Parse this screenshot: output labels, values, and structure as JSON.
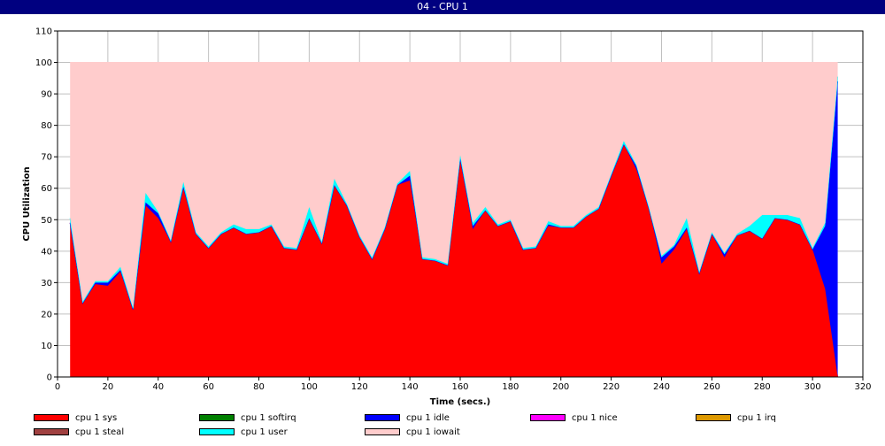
{
  "window": {
    "title": "04 - CPU 1"
  },
  "chart_data": {
    "type": "area",
    "stacked": true,
    "xlabel": "Time (secs.)",
    "ylabel": "CPU Utilization",
    "xlim": [
      0,
      320
    ],
    "ylim": [
      0,
      110
    ],
    "xticks": [
      0,
      20,
      40,
      60,
      80,
      100,
      120,
      140,
      160,
      180,
      200,
      220,
      240,
      260,
      280,
      300,
      320
    ],
    "yticks": [
      0,
      10,
      20,
      30,
      40,
      50,
      60,
      70,
      80,
      90,
      100,
      110
    ],
    "grid": true,
    "legend_position": "bottom",
    "x": [
      5,
      10,
      15,
      20,
      25,
      30,
      35,
      40,
      45,
      50,
      55,
      60,
      65,
      70,
      75,
      80,
      85,
      90,
      95,
      100,
      105,
      110,
      115,
      120,
      125,
      130,
      135,
      140,
      145,
      150,
      155,
      160,
      165,
      170,
      175,
      180,
      185,
      190,
      195,
      200,
      205,
      210,
      215,
      220,
      225,
      230,
      235,
      240,
      245,
      250,
      255,
      260,
      265,
      270,
      275,
      280,
      285,
      290,
      295,
      300,
      305,
      310
    ],
    "series": [
      {
        "name": "cpu 1 sys",
        "color": "#ff0000",
        "values": [
          49,
          23.5,
          29.5,
          29,
          33.5,
          21.5,
          54.5,
          50.5,
          43,
          60,
          45.5,
          41,
          45.5,
          47.5,
          45.5,
          46,
          48,
          41,
          40.5,
          50.5,
          42.5,
          61,
          54.5,
          44.5,
          37.5,
          47,
          61,
          62.5,
          37.5,
          37,
          35.5,
          69.5,
          47,
          53,
          48,
          49.5,
          40.5,
          41,
          48,
          47.5,
          47.5,
          51,
          53.5,
          64,
          74,
          66,
          53.5,
          36,
          40.5,
          47,
          33,
          45.5,
          38,
          45,
          46.5,
          44,
          50.5,
          50,
          48.5,
          40.5,
          28,
          0
        ]
      },
      {
        "name": "cpu 1 softirq",
        "color": "#008000",
        "values": [
          0,
          0,
          0,
          0,
          0,
          0,
          0,
          0,
          0,
          0,
          0,
          0,
          0,
          0,
          0,
          0,
          0,
          0,
          0,
          0,
          0,
          0,
          0,
          0,
          0,
          0,
          0,
          0,
          0,
          0,
          0,
          0,
          0,
          0,
          0,
          0,
          0,
          0,
          0,
          0,
          0,
          0,
          0,
          0,
          0,
          0,
          0,
          0,
          0,
          0,
          0,
          0,
          0,
          0,
          0,
          0,
          0,
          0,
          0,
          0,
          0,
          0
        ]
      },
      {
        "name": "cpu 1 idle",
        "color": "#0000ff",
        "values": [
          0,
          0,
          0.5,
          1,
          0.5,
          0,
          1,
          1.5,
          0,
          0.5,
          0,
          0,
          0,
          0,
          0,
          0,
          0,
          0,
          0,
          0,
          0,
          0,
          0,
          0,
          0,
          0,
          0,
          1.5,
          0,
          0,
          0,
          0,
          1,
          0,
          0,
          0,
          0,
          0,
          0.5,
          0,
          0,
          0,
          0,
          0,
          0,
          1,
          0,
          2,
          1,
          0.5,
          0,
          0,
          1,
          0,
          0,
          0,
          0,
          0,
          0,
          0,
          20,
          94
        ]
      },
      {
        "name": "cpu 1 nice",
        "color": "#ff00ff",
        "values": [
          0,
          0,
          0,
          0,
          0,
          0,
          0,
          0,
          0,
          0,
          0,
          0,
          0,
          0,
          0,
          0,
          0,
          0,
          0,
          0,
          0,
          0,
          0,
          0,
          0,
          0,
          0,
          0,
          0,
          0,
          0,
          0,
          0,
          0,
          0,
          0,
          0,
          0,
          0,
          0,
          0,
          0,
          0,
          0,
          0,
          0,
          0,
          0,
          0,
          0,
          0,
          0,
          0,
          0,
          0,
          0,
          0,
          0,
          0,
          0,
          0,
          0
        ]
      },
      {
        "name": "cpu 1 irq",
        "color": "#dd9900",
        "values": [
          0,
          0,
          0,
          0,
          0,
          0,
          0,
          0,
          0,
          0,
          0,
          0,
          0,
          0,
          0,
          0,
          0,
          0,
          0,
          0,
          0,
          0,
          0,
          0,
          0,
          0,
          0,
          0,
          0,
          0,
          0,
          0,
          0,
          0,
          0,
          0,
          0,
          0,
          0,
          0,
          0,
          0,
          0,
          0,
          0,
          0,
          0,
          0,
          0,
          0,
          0,
          0,
          0,
          0,
          0,
          0,
          0,
          0,
          0,
          0,
          0,
          0
        ]
      },
      {
        "name": "cpu 1 steal",
        "color": "#a04040",
        "values": [
          0,
          0,
          0,
          0,
          0,
          0,
          0,
          0,
          0,
          0,
          0,
          0,
          0,
          0,
          0,
          0,
          0,
          0,
          0,
          0,
          0,
          0,
          0,
          0,
          0,
          0,
          0,
          0,
          0,
          0,
          0,
          0,
          0,
          0,
          0,
          0,
          0,
          0,
          0,
          0,
          0,
          0,
          0,
          0,
          0,
          0,
          0,
          0,
          0,
          0,
          0,
          0,
          0,
          0,
          0,
          0,
          0,
          0,
          0,
          0,
          0,
          0
        ]
      },
      {
        "name": "cpu 1 user",
        "color": "#00ffff",
        "values": [
          1.5,
          0.5,
          0.5,
          0.5,
          1,
          0.5,
          3,
          0.5,
          0.5,
          1.5,
          0.5,
          0.5,
          0.5,
          1,
          1.5,
          1,
          0.5,
          0.5,
          0.5,
          3.5,
          0.5,
          2,
          0.5,
          0.5,
          0.5,
          0.5,
          0.5,
          1.5,
          0.5,
          0.5,
          0.5,
          1,
          1,
          1,
          0.5,
          0.5,
          0.5,
          0.5,
          1,
          0.5,
          0.5,
          0.5,
          0.5,
          0.5,
          1,
          0.5,
          0.5,
          0.5,
          0.5,
          3,
          0.5,
          0.5,
          0.5,
          0.5,
          1.5,
          7.5,
          1,
          1.5,
          2,
          0.5,
          1,
          1.5
        ]
      },
      {
        "name": "cpu 1 iowait",
        "color": "#ffcccc",
        "values": [
          49.5,
          76,
          69.5,
          69.5,
          65,
          78,
          41.5,
          47.5,
          56.5,
          38,
          54,
          58.5,
          54,
          51.5,
          53,
          53,
          51.5,
          58.5,
          59,
          46,
          57,
          37,
          45,
          55,
          62,
          52.5,
          38.5,
          34.5,
          62,
          62.5,
          64,
          29.5,
          51,
          46,
          51.5,
          50,
          59,
          58.5,
          50.5,
          52,
          52,
          48.5,
          46,
          35.5,
          25,
          32.5,
          46,
          61.5,
          58,
          49.5,
          66.5,
          54,
          60.5,
          54.5,
          52,
          48.5,
          48.5,
          48.5,
          49.5,
          59,
          51,
          4.5
        ]
      }
    ]
  },
  "legend": {
    "items": [
      {
        "label": "cpu 1 sys",
        "color": "#ff0000"
      },
      {
        "label": "cpu 1 softirq",
        "color": "#008000"
      },
      {
        "label": "cpu 1 idle",
        "color": "#0000ff"
      },
      {
        "label": "cpu 1 nice",
        "color": "#ff00ff"
      },
      {
        "label": "cpu 1 irq",
        "color": "#dd9900"
      },
      {
        "label": "cpu 1 steal",
        "color": "#a04040"
      },
      {
        "label": "cpu 1 user",
        "color": "#00ffff"
      },
      {
        "label": "cpu 1 iowait",
        "color": "#ffcccc"
      }
    ]
  }
}
